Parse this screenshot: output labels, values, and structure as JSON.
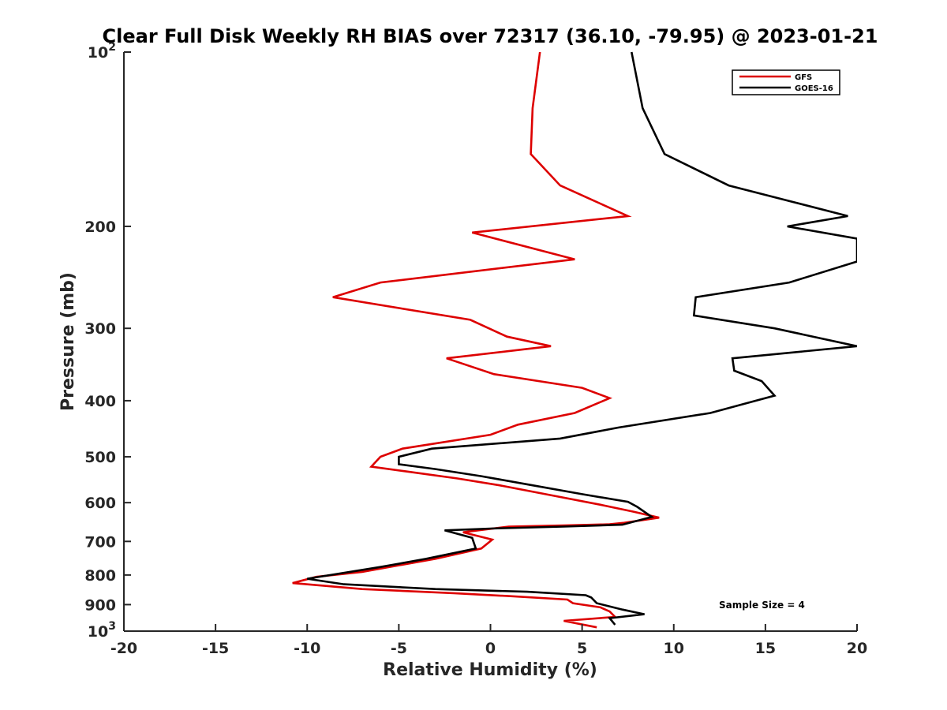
{
  "chart_data": {
    "type": "line",
    "title": "Clear Full Disk Weekly RH BIAS over 72317 (36.10, -79.95) @ 2023-01-21",
    "xlabel": "Relative Humidity (%)",
    "ylabel": "Pressure (mb)",
    "xlim": [
      -20,
      20
    ],
    "ylim": [
      1000,
      100
    ],
    "y_scale": "log",
    "x_ticks": [
      -20,
      -15,
      -10,
      -5,
      0,
      5,
      10,
      15,
      20
    ],
    "x_tick_labels": [
      "-20",
      "-15",
      "-10",
      "-5",
      "0",
      "5",
      "10",
      "15",
      "20"
    ],
    "y_ticks": [
      {
        "value": 100,
        "base": "10",
        "exp": "2",
        "label": ""
      },
      {
        "value": 200,
        "base": "",
        "exp": "",
        "label": "200"
      },
      {
        "value": 300,
        "base": "",
        "exp": "",
        "label": "300"
      },
      {
        "value": 400,
        "base": "",
        "exp": "",
        "label": "400"
      },
      {
        "value": 500,
        "base": "",
        "exp": "",
        "label": "500"
      },
      {
        "value": 600,
        "base": "",
        "exp": "",
        "label": "600"
      },
      {
        "value": 700,
        "base": "",
        "exp": "",
        "label": "700"
      },
      {
        "value": 800,
        "base": "",
        "exp": "",
        "label": "800"
      },
      {
        "value": 900,
        "base": "",
        "exp": "",
        "label": "900"
      },
      {
        "value": 1000,
        "base": "10",
        "exp": "3",
        "label": ""
      }
    ],
    "legend_position": "top-right",
    "annotation": "Sample Size = 4",
    "series": [
      {
        "name": "GFS",
        "color": "#dd0000",
        "points": [
          [
            2.7,
            100
          ],
          [
            2.3,
            125
          ],
          [
            2.2,
            150
          ],
          [
            3.8,
            170
          ],
          [
            7.5,
            192
          ],
          [
            -1.0,
            205
          ],
          [
            4.6,
            228
          ],
          [
            -6.0,
            250
          ],
          [
            -8.6,
            265
          ],
          [
            -1.1,
            290
          ],
          [
            0.9,
            310
          ],
          [
            3.3,
            322
          ],
          [
            -2.4,
            338
          ],
          [
            0.2,
            360
          ],
          [
            5.0,
            380
          ],
          [
            6.5,
            396
          ],
          [
            4.6,
            420
          ],
          [
            1.5,
            440
          ],
          [
            0.0,
            458
          ],
          [
            -4.8,
            484
          ],
          [
            -6.0,
            500
          ],
          [
            -6.5,
            520
          ],
          [
            -4.6,
            530
          ],
          [
            -1.8,
            545
          ],
          [
            0.5,
            560
          ],
          [
            3.0,
            580
          ],
          [
            6.0,
            605
          ],
          [
            7.8,
            622
          ],
          [
            9.2,
            637
          ],
          [
            7.3,
            650
          ],
          [
            6.5,
            654
          ],
          [
            4.0,
            657
          ],
          [
            1.0,
            660
          ],
          [
            -1.5,
            675
          ],
          [
            0.1,
            695
          ],
          [
            -0.5,
            720
          ],
          [
            -3.0,
            750
          ],
          [
            -7.0,
            790
          ],
          [
            -9.5,
            806
          ],
          [
            -10.8,
            826
          ],
          [
            -7.0,
            846
          ],
          [
            -2.0,
            860
          ],
          [
            1.0,
            870
          ],
          [
            4.2,
            882
          ],
          [
            4.5,
            895
          ],
          [
            6.0,
            910
          ],
          [
            6.5,
            925
          ],
          [
            6.8,
            945
          ],
          [
            4.0,
            960
          ],
          [
            5.8,
            985
          ]
        ]
      },
      {
        "name": "GOES-16",
        "color": "#000000",
        "points": [
          [
            7.7,
            100
          ],
          [
            8.3,
            125
          ],
          [
            9.5,
            150
          ],
          [
            13.0,
            170
          ],
          [
            19.5,
            192
          ],
          [
            16.2,
            200
          ],
          [
            20.0,
            210
          ],
          [
            20.0,
            230
          ],
          [
            16.3,
            250
          ],
          [
            11.2,
            265
          ],
          [
            11.1,
            285
          ],
          [
            15.5,
            300
          ],
          [
            20.0,
            322
          ],
          [
            13.2,
            338
          ],
          [
            13.3,
            355
          ],
          [
            14.8,
            370
          ],
          [
            15.5,
            392
          ],
          [
            12.0,
            420
          ],
          [
            7.0,
            445
          ],
          [
            3.8,
            465
          ],
          [
            -3.2,
            484
          ],
          [
            -5.0,
            500
          ],
          [
            -5.0,
            515
          ],
          [
            -3.0,
            525
          ],
          [
            -0.5,
            540
          ],
          [
            2.3,
            560
          ],
          [
            5.0,
            580
          ],
          [
            7.5,
            598
          ],
          [
            8.0,
            610
          ],
          [
            8.8,
            635
          ],
          [
            7.2,
            655
          ],
          [
            4.0,
            660
          ],
          [
            0.0,
            665
          ],
          [
            -2.5,
            670
          ],
          [
            -1.0,
            690
          ],
          [
            -0.8,
            720
          ],
          [
            -3.5,
            750
          ],
          [
            -6.0,
            775
          ],
          [
            -10.0,
            812
          ],
          [
            -8.0,
            830
          ],
          [
            -3.0,
            846
          ],
          [
            2.0,
            855
          ],
          [
            5.2,
            867
          ],
          [
            5.5,
            875
          ],
          [
            5.8,
            895
          ],
          [
            7.2,
            918
          ],
          [
            8.4,
            935
          ],
          [
            6.5,
            950
          ],
          [
            6.8,
            975
          ]
        ]
      }
    ]
  }
}
